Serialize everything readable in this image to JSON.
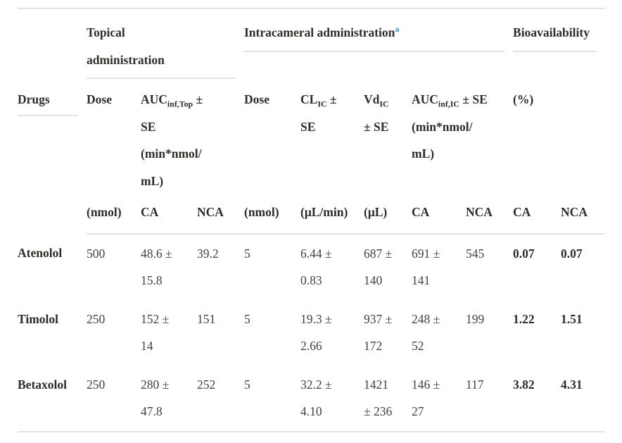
{
  "colors": {
    "accent": "#2b8dc6",
    "rule": "#e4e4e4"
  },
  "table": {
    "group_header_row": [
      {
        "segments": []
      },
      {
        "segments": [
          {
            "t": "Topical\nadministration"
          }
        ]
      },
      {
        "segments": [
          {
            "t": "Intracameral administration"
          },
          {
            "t": "a",
            "sup": true,
            "color": "accent"
          }
        ]
      },
      {
        "segments": [
          {
            "t": "Bioavailability"
          }
        ]
      }
    ],
    "param_header_row": [
      {
        "segments": [
          {
            "t": "Drugs"
          }
        ]
      },
      {
        "segments": [
          {
            "t": "Dose"
          }
        ]
      },
      {
        "segments": [
          {
            "t": "AUC"
          },
          {
            "t": "inf,Top",
            "sub": true
          },
          {
            "t": " ±\nSE\n(min*nmol/\nmL)"
          }
        ]
      },
      {
        "segments": [
          {
            "t": "Dose"
          }
        ]
      },
      {
        "segments": [
          {
            "t": "CL"
          },
          {
            "t": "IC",
            "sub": true
          },
          {
            "t": " ±\nSE"
          }
        ]
      },
      {
        "segments": [
          {
            "t": "Vd"
          },
          {
            "t": "IC",
            "sub": true
          },
          {
            "t": "\n± SE"
          }
        ]
      },
      {
        "segments": [
          {
            "t": "AUC"
          },
          {
            "t": "inf,IC",
            "sub": true
          },
          {
            "t": " ± SE\n(min*nmol/\nmL)"
          }
        ]
      },
      {
        "segments": [
          {
            "t": "(%)"
          }
        ]
      }
    ],
    "unit_header_row": [
      "",
      "(nmol)",
      "CA",
      "NCA",
      "(nmol)",
      "(μL/min)",
      "(μL)",
      "CA",
      "NCA",
      "CA",
      "NCA"
    ],
    "rows": [
      {
        "cells": [
          "Atenolol",
          "500",
          "48.6 ±\n15.8",
          "39.2",
          "5",
          "6.44 ±\n0.83",
          "687 ±\n140",
          "691 ±\n141",
          "545",
          "0.07",
          "0.07"
        ]
      },
      {
        "cells": [
          "Timolol",
          "250",
          "152 ±\n14",
          "151",
          "5",
          "19.3 ±\n2.66",
          "937 ±\n172",
          "248 ±\n52",
          "199",
          "1.22",
          "1.51"
        ]
      },
      {
        "cells": [
          "Betaxolol",
          "250",
          "280 ±\n47.8",
          "252",
          "5",
          "32.2 ±\n4.10",
          "1421\n± 236",
          "146 ±\n27",
          "117",
          "3.82",
          "4.31"
        ]
      }
    ]
  }
}
